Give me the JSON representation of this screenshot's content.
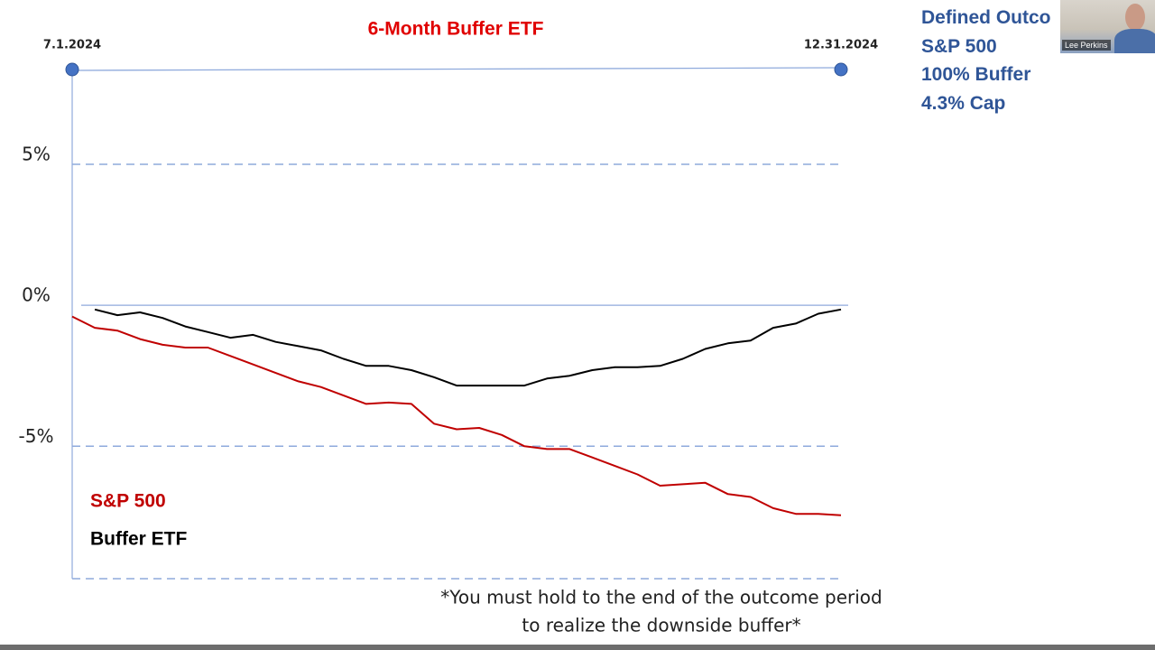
{
  "chart_data": {
    "type": "line",
    "title": "6-Month Buffer ETF",
    "categories": [
      "7.1.2024",
      null,
      null,
      null,
      null,
      null,
      null,
      null,
      null,
      null,
      null,
      null,
      null,
      null,
      null,
      null,
      null,
      null,
      null,
      null,
      null,
      null,
      null,
      null,
      null,
      null,
      null,
      null,
      null,
      null,
      null,
      null,
      null,
      null,
      "12.31.2024"
    ],
    "series": [
      {
        "name": "S&P 500",
        "color": "#c00000",
        "values": [
          -0.4,
          -0.8,
          -0.9,
          -1.2,
          -1.4,
          -1.5,
          -1.5,
          -1.8,
          -2.1,
          -2.4,
          -2.7,
          -2.9,
          -3.2,
          -3.5,
          -3.45,
          -3.5,
          -4.2,
          -4.4,
          -4.35,
          -4.6,
          -5.0,
          -5.1,
          -5.1,
          -5.4,
          -5.7,
          -6.0,
          -6.4,
          -6.35,
          -6.3,
          -6.7,
          -6.8,
          -7.2,
          -7.4,
          -7.4,
          -7.45
        ]
      },
      {
        "name": "Buffer ETF",
        "color": "#000000",
        "values": [
          null,
          -0.15,
          -0.35,
          -0.25,
          -0.45,
          -0.75,
          -0.95,
          -1.15,
          -1.05,
          -1.3,
          -1.45,
          -1.6,
          -1.9,
          -2.15,
          -2.15,
          -2.3,
          -2.55,
          -2.85,
          -2.85,
          -2.85,
          -2.85,
          -2.6,
          -2.5,
          -2.3,
          -2.2,
          -2.2,
          -2.15,
          -1.9,
          -1.55,
          -1.35,
          -1.25,
          -0.8,
          -0.65,
          -0.3,
          -0.15
        ]
      }
    ],
    "ylim": [
      -9.7,
      8.3
    ],
    "yticks": [
      {
        "value": 5,
        "label": "5%"
      },
      {
        "value": 0,
        "label": "0%"
      },
      {
        "value": -5,
        "label": "-5%"
      }
    ],
    "grid": true,
    "footnote": [
      "*You must hold to the end of the outcome period",
      "to realize the downside buffer*"
    ]
  },
  "side_panel": {
    "lines": [
      "Defined Outco",
      "S&P 500",
      "100% Buffer",
      "4.3% Cap"
    ]
  },
  "webcam": {
    "name": "Lee Perkins"
  }
}
